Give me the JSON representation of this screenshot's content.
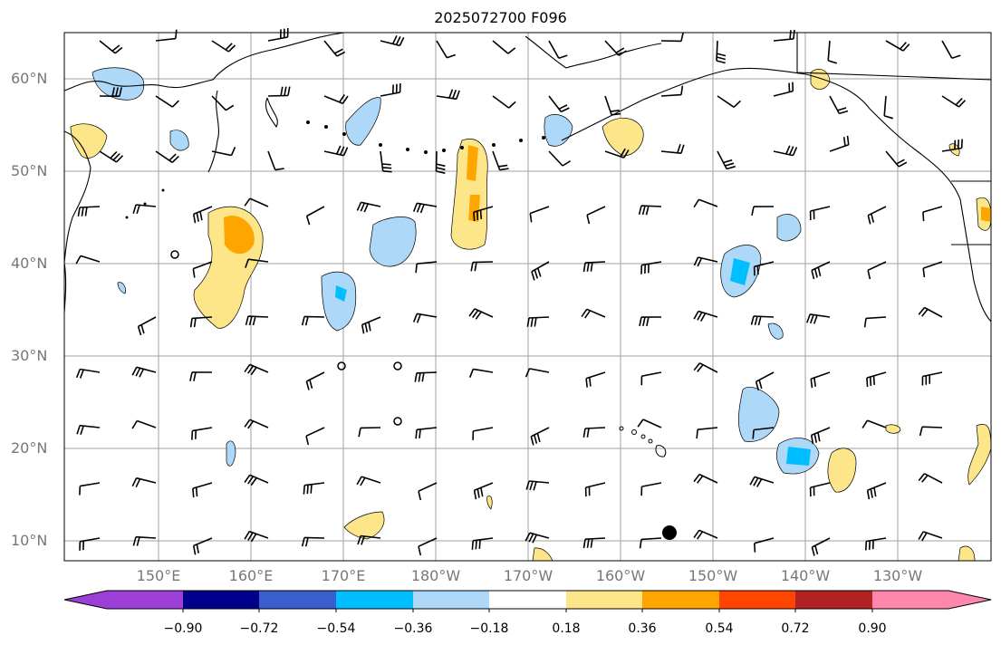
{
  "title": "2025072700 F096",
  "lat_labels": [
    "60°N",
    "50°N",
    "40°N",
    "30°N",
    "20°N",
    "10°N"
  ],
  "lon_labels": [
    "150°E",
    "160°E",
    "170°E",
    "180°W",
    "170°W",
    "160°W",
    "150°W",
    "140°W",
    "130°W"
  ],
  "colorbar": {
    "labels": [
      "−0.90",
      "−0.72",
      "−0.54",
      "−0.36",
      "−0.18",
      "0.18",
      "0.36",
      "0.54",
      "0.72",
      "0.90"
    ],
    "colors": [
      "#9b3fd6",
      "#00008b",
      "#3a5fcd",
      "#00bfff",
      "#add8f7",
      "#ffffff",
      "#fde68a",
      "#ffa500",
      "#ff4500",
      "#b22222",
      "#ff87ae"
    ]
  },
  "features": {
    "storm_marker": "black-dot",
    "graticule": "grey"
  }
}
